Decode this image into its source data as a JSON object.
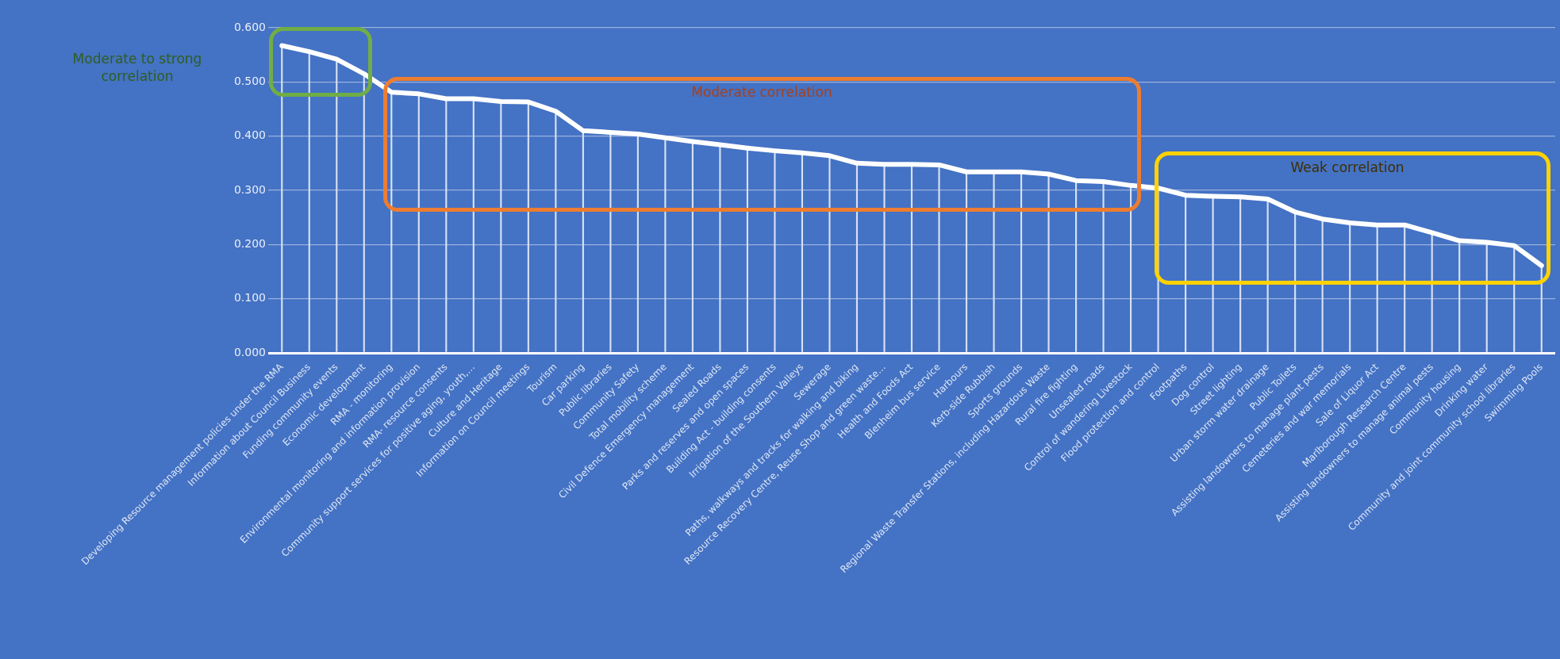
{
  "chart_data": {
    "type": "line",
    "categories": [
      "Developing Resource management policies under the RMA",
      "Information about Council Business",
      "Funding community events",
      "Economic development",
      "RMA - monitoring",
      "Environmental monitoring and information provision",
      "RMA- resource consents",
      "Community support services for positive aging, youth,…",
      "Culture and Heritage",
      "Information on Council meetings",
      "Tourism",
      "Car parking",
      "Public libraries",
      "Community Safety",
      "Total mobility scheme",
      "Civil Defence Emergency management",
      "Sealed Roads",
      "Parks and reserves and open spaces",
      "Building Act - building consents",
      "Irrigation of the Southern Valleys",
      "Sewerage",
      "Paths, walkways and tracks for walking and biking",
      "Resource Recovery Centre, Reuse Shop and green waste…",
      "Health and Foods Act",
      "Blenheim bus service",
      "Harbours",
      "Kerb-side Rubbish",
      "Sports grounds",
      "Regional Waste Transfer Stations, including Hazardous Waste",
      "Rural fire fighting",
      "Unsealed roads",
      "Control of wandering Livestock",
      "Flood protection and control",
      "Footpaths",
      "Dog control",
      "Street lighting",
      "Urban storm water drainage",
      "Public Toilets",
      "Assisting landowners to manage plant pests",
      "Cemeteries and war memorials",
      "Sale of Liquor Act",
      "Marlborough Research Centre",
      "Assisting landowners to manage animal pests",
      "Community housing",
      "Drinking water",
      "Community and joint community school libraries",
      "Swimming Pools"
    ],
    "series": [
      {
        "color": "#ffffff",
        "values": [
          0.567,
          0.556,
          0.542,
          0.515,
          0.481,
          0.478,
          0.469,
          0.469,
          0.464,
          0.463,
          0.446,
          0.41,
          0.407,
          0.404,
          0.397,
          0.39,
          0.384,
          0.378,
          0.373,
          0.369,
          0.364,
          0.35,
          0.348,
          0.348,
          0.347,
          0.334,
          0.334,
          0.334,
          0.33,
          0.318,
          0.316,
          0.309,
          0.304,
          0.291,
          0.289,
          0.288,
          0.284,
          0.26,
          0.247,
          0.24,
          0.236,
          0.236,
          0.222,
          0.207,
          0.204,
          0.198,
          0.161
        ]
      },
      {
        "type": "bar",
        "color": "#d6e1f3",
        "values": [
          0.567,
          0.556,
          0.542,
          0.515,
          0.481,
          0.478,
          0.469,
          0.469,
          0.464,
          0.463,
          0.446,
          0.41,
          0.407,
          0.404,
          0.397,
          0.39,
          0.384,
          0.378,
          0.373,
          0.369,
          0.364,
          0.35,
          0.348,
          0.348,
          0.347,
          0.334,
          0.334,
          0.334,
          0.33,
          0.318,
          0.316,
          0.309,
          0.304,
          0.291,
          0.289,
          0.288,
          0.284,
          0.26,
          0.247,
          0.24,
          0.236,
          0.236,
          0.222,
          0.207,
          0.204,
          0.198,
          0.161
        ]
      }
    ],
    "ylim": [
      0,
      0.6
    ],
    "yticks": [
      {
        "value": 0,
        "label": "0.000"
      },
      {
        "value": 0.1,
        "label": "0.100"
      },
      {
        "value": 0.2,
        "label": "0.200"
      },
      {
        "value": 0.3,
        "label": "0.300"
      },
      {
        "value": 0.4,
        "label": "0.400"
      },
      {
        "value": 0.5,
        "label": "0.500"
      },
      {
        "value": 0.6,
        "label": "0.600"
      }
    ],
    "grid": "y",
    "legend": false,
    "marker": "none",
    "line_style": "solid",
    "annotations": [
      "Moderate to strong correlation",
      "Moderate correlation",
      "Weak correlation"
    ]
  }
}
